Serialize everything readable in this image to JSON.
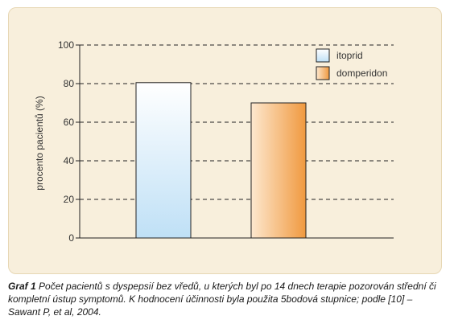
{
  "chart_data": {
    "type": "bar",
    "categories": [
      "itoprid",
      "domperidon"
    ],
    "values": [
      80.5,
      70
    ],
    "ylabel": "procento pacientů (%)",
    "xlabel": "",
    "ylim": [
      0,
      100
    ],
    "yticks": [
      0,
      20,
      40,
      60,
      80,
      100
    ],
    "grid": true,
    "grid_style": "dashed",
    "legend_position": "top-right",
    "legend": [
      {
        "label": "itoprid",
        "color": "#cfe8f8"
      },
      {
        "label": "domperidon",
        "color": "#f2a35a"
      }
    ]
  },
  "colors": {
    "panel_background": "#f8efdc",
    "itoprid_top": "#ffffff",
    "itoprid_bottom": "#bfe0f6",
    "domperidon_light": "#fde8cf",
    "domperidon_dark": "#f0993f"
  },
  "caption": {
    "label": "Graf 1",
    "text": "Počet pacientů s dyspepsií bez vředů, u kterých byl po 14 dnech terapie pozorován střední či kompletní ústup symptomů. K hodnocení účinnosti byla použita 5bodová stupnice; podle [10] – Sawant P, et al, 2004."
  }
}
